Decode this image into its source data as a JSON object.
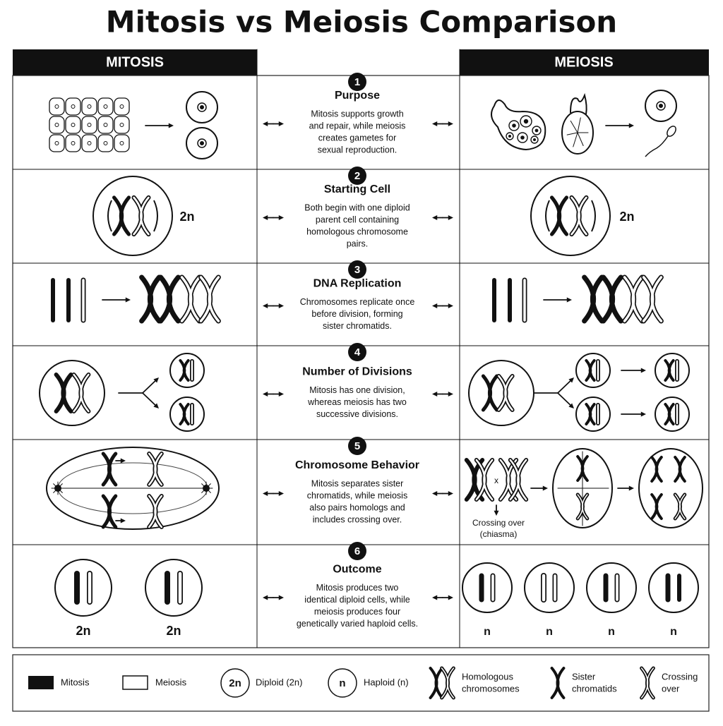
{
  "title": "Mitosis vs Meiosis Comparison",
  "columns": {
    "left": "MITOSIS",
    "right": "MEIOSIS"
  },
  "rows": [
    {
      "number": 1,
      "heading": "Purpose",
      "lines": [
        "Mitosis supports growth",
        "and repair, while meiosis",
        "creates gametes for",
        "sexual reproduction."
      ]
    },
    {
      "number": 2,
      "heading": "Starting Cell",
      "lines": [
        "Both begin with one diploid",
        "parent cell containing",
        "homologous chromosome",
        "pairs."
      ]
    },
    {
      "number": 3,
      "heading": "DNA Replication",
      "lines": [
        "Chromosomes replicate once",
        "before division, forming",
        "sister chromatids."
      ]
    },
    {
      "number": 4,
      "heading": "Number of Divisions",
      "lines": [
        "Mitosis has one division,",
        "whereas meiosis has two",
        "successive divisions."
      ]
    },
    {
      "number": 5,
      "heading": "Chromosome Behavior",
      "lines": [
        "Mitosis separates sister",
        "chromatids, while meiosis",
        "also pairs homologs and",
        "includes crossing over."
      ]
    },
    {
      "number": 6,
      "heading": "Outcome",
      "lines": [
        "Mitosis produces two",
        "identical diploid cells, while",
        "meiosis produces four",
        "genetically varied haploid cells."
      ]
    }
  ],
  "diagram_labels": {
    "starting_cell_left": "2n",
    "starting_cell_right": "2n",
    "crossing_symbol": "x",
    "crossing_over": [
      "Crossing over",
      "(chiasma)"
    ],
    "outcome_left": [
      "2n",
      "2n"
    ],
    "outcome_right": [
      "n",
      "n",
      "n",
      "n"
    ]
  },
  "legend": [
    {
      "label": "Mitosis"
    },
    {
      "label": "Meiosis"
    },
    {
      "symbol": "2n",
      "label": "Diploid (2n)"
    },
    {
      "symbol": "n",
      "label": "Haploid (n)"
    },
    {
      "label": [
        "Homologous",
        "chromosomes"
      ]
    },
    {
      "label": [
        "Sister",
        "chromatids"
      ]
    },
    {
      "label": [
        "Crossing",
        "over"
      ]
    }
  ]
}
